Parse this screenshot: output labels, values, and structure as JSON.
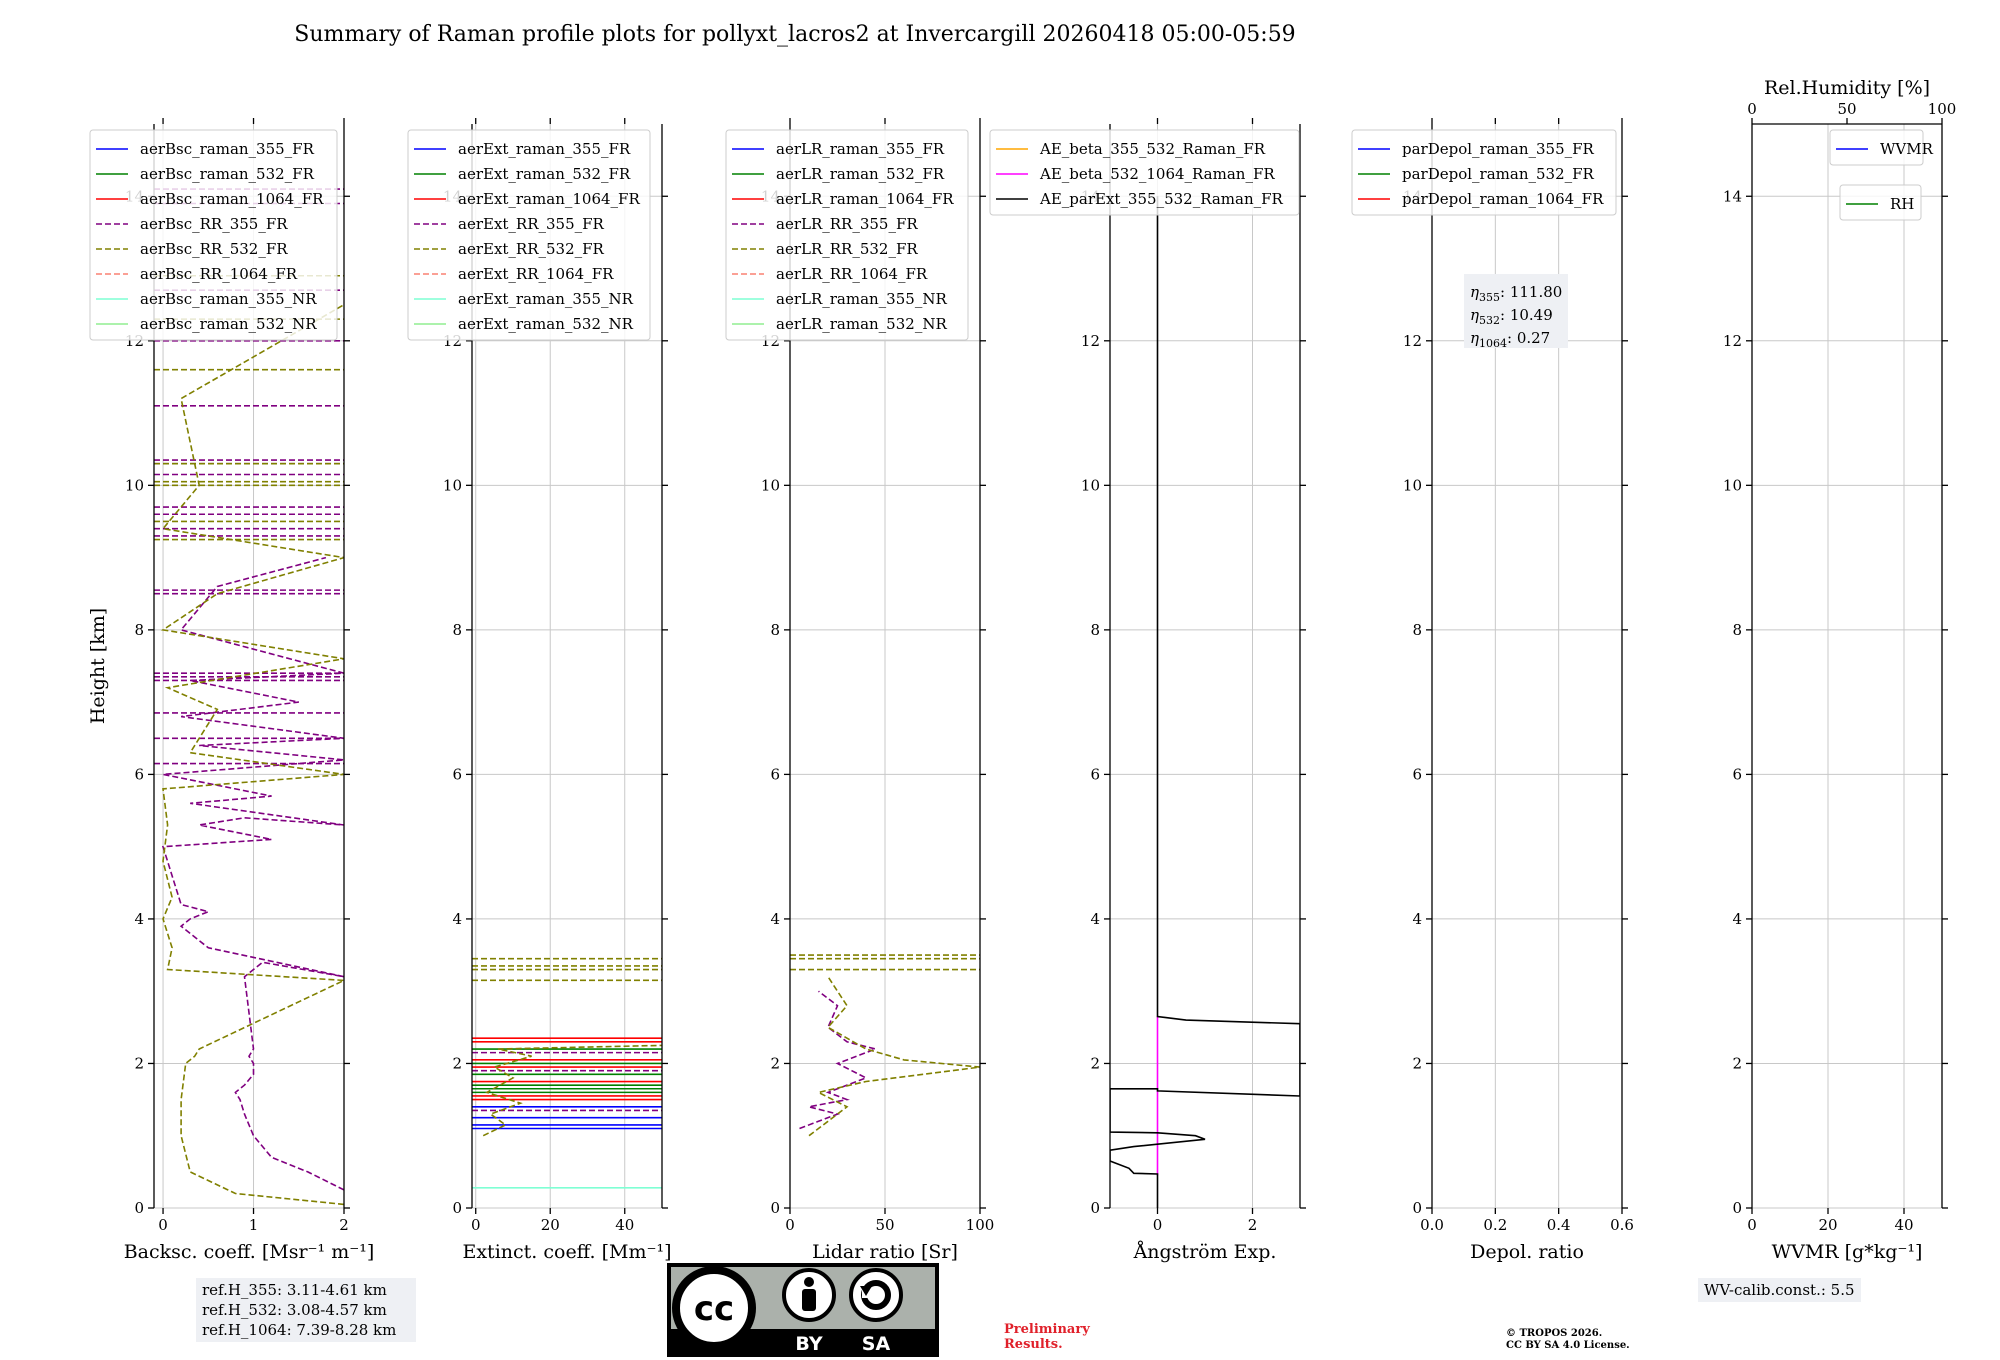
{
  "title": "Summary of Raman profile plots for pollyxt_lacros2 at Invercargill 20260418 05:00-05:59",
  "ylabel": "Height [km]",
  "ref_heights": [
    "ref.H_355: 3.11-4.61 km",
    "ref.H_532: 3.08-4.57 km",
    "ref.H_1064: 7.39-8.28 km"
  ],
  "wv_calib": "WV-calib.const.: 5.5",
  "cc_badge": {
    "by": "BY",
    "sa": "SA"
  },
  "preliminary": [
    "Preliminary",
    "Results."
  ],
  "copyright": [
    "© TROPOS 2026.",
    "CC BY SA 4.0 License."
  ],
  "colors": {
    "blue": "#0000ff",
    "green": "#008000",
    "red": "#ff0000",
    "purple": "#800080",
    "olive": "#808000",
    "salmon": "#fa8072",
    "cyan": "#7fffd4",
    "lightgreen": "#90ee90",
    "orange": "#ffa500",
    "magenta": "#ff00ff",
    "black": "#000000",
    "grid": "#c8c8c8"
  },
  "chart_data": [
    {
      "type": "line",
      "xlabel": "Backsc. coeff. [Msr⁻¹ m⁻¹]",
      "xlim": [
        -0.1,
        2
      ],
      "ylim": [
        0,
        15
      ],
      "xticks": [
        "0",
        "1",
        "2"
      ],
      "xtick_values": [
        0,
        1,
        2
      ],
      "yticks": [
        "0",
        "2",
        "4",
        "6",
        "8",
        "10",
        "12",
        "14"
      ],
      "legend": [
        {
          "label": "aerBsc_raman_355_FR",
          "color": "blue",
          "dash": false
        },
        {
          "label": "aerBsc_raman_532_FR",
          "color": "green",
          "dash": false
        },
        {
          "label": "aerBsc_raman_1064_FR",
          "color": "red",
          "dash": false
        },
        {
          "label": "aerBsc_RR_355_FR",
          "color": "purple",
          "dash": true
        },
        {
          "label": "aerBsc_RR_532_FR",
          "color": "olive",
          "dash": true
        },
        {
          "label": "aerBsc_RR_1064_FR",
          "color": "salmon",
          "dash": true
        },
        {
          "label": "aerBsc_raman_355_NR",
          "color": "cyan",
          "dash": false
        },
        {
          "label": "aerBsc_raman_532_NR",
          "color": "lightgreen",
          "dash": false
        }
      ],
      "series": [
        {
          "name": "aerBsc_RR_355_FR",
          "color": "purple",
          "dash": true,
          "x": [
            2.0,
            1.6,
            1.2,
            1.0,
            0.9,
            0.85,
            0.8,
            0.9,
            1.0,
            1.0,
            0.95,
            1.0,
            0.9,
            1.1,
            2.0,
            0.5,
            0.2,
            0.3,
            0.5,
            0.2,
            0.0,
            1.2,
            0.4,
            0.9,
            2.0,
            0.3,
            1.2,
            0.0,
            2.0,
            0.4,
            2.0,
            0.2,
            1.5,
            0.3,
            2.0,
            0.2,
            0.6,
            1.8
          ],
          "y": [
            0.25,
            0.5,
            0.7,
            1.0,
            1.3,
            1.5,
            1.6,
            1.7,
            1.85,
            2.0,
            2.1,
            2.2,
            3.2,
            3.4,
            3.2,
            3.6,
            3.9,
            4.0,
            4.1,
            4.2,
            5.0,
            5.1,
            5.3,
            5.4,
            5.3,
            5.6,
            5.7,
            6.0,
            6.2,
            6.4,
            6.5,
            6.8,
            7.0,
            7.3,
            7.4,
            8.0,
            8.6,
            9.0
          ]
        },
        {
          "name": "aerBsc_RR_532_FR",
          "color": "olive",
          "dash": true,
          "x": [
            2.0,
            0.8,
            0.3,
            0.2,
            0.2,
            0.25,
            0.35,
            0.4,
            2.0,
            0.05,
            0.1,
            0.0,
            0.1,
            0.0,
            0.05,
            0.0,
            2.0,
            0.3,
            0.6,
            0.05,
            2.0,
            0.0,
            0.6,
            2.0,
            0.0,
            0.4,
            0.2,
            2.0
          ],
          "y": [
            0.05,
            0.2,
            0.5,
            1.0,
            1.5,
            2.0,
            2.1,
            2.2,
            3.15,
            3.3,
            3.6,
            4.0,
            4.3,
            4.8,
            5.3,
            5.8,
            6.0,
            6.3,
            6.9,
            7.2,
            7.6,
            8.0,
            8.5,
            9.0,
            9.4,
            10.0,
            11.2,
            12.5
          ]
        }
      ],
      "hlines": [
        {
          "color": "purple",
          "y": [
            6.15,
            6.5,
            6.85,
            7.3,
            7.35,
            7.4,
            8.5,
            8.55,
            9.3,
            9.4,
            9.6,
            9.7,
            10.15,
            10.3,
            10.35,
            11.1,
            12.0,
            12.7,
            13.9,
            14.1
          ]
        },
        {
          "color": "olive",
          "y": [
            9.25,
            9.5,
            10.0,
            10.05,
            10.3,
            11.6,
            12.3,
            12.9
          ]
        }
      ]
    },
    {
      "type": "line",
      "xlabel": "Extinct. coeff. [Mm⁻¹]",
      "xlim": [
        -1,
        50
      ],
      "ylim": [
        0,
        15
      ],
      "xticks": [
        "0",
        "20",
        "40"
      ],
      "xtick_values": [
        0,
        20,
        40
      ],
      "yticks": [
        "0",
        "2",
        "4",
        "6",
        "8",
        "10",
        "12",
        "14"
      ],
      "legend": [
        {
          "label": "aerExt_raman_355_FR",
          "color": "blue",
          "dash": false
        },
        {
          "label": "aerExt_raman_532_FR",
          "color": "green",
          "dash": false
        },
        {
          "label": "aerExt_raman_1064_FR",
          "color": "red",
          "dash": false
        },
        {
          "label": "aerExt_RR_355_FR",
          "color": "purple",
          "dash": true
        },
        {
          "label": "aerExt_RR_532_FR",
          "color": "olive",
          "dash": true
        },
        {
          "label": "aerExt_RR_1064_FR",
          "color": "salmon",
          "dash": true
        },
        {
          "label": "aerExt_raman_355_NR",
          "color": "cyan",
          "dash": false
        },
        {
          "label": "aerExt_raman_532_NR",
          "color": "lightgreen",
          "dash": false
        }
      ],
      "series": [
        {
          "name": "aerExt_RR_532_FR",
          "color": "olive",
          "dash": true,
          "x": [
            2,
            8,
            4,
            12,
            3,
            10,
            5,
            15,
            6,
            50
          ],
          "y": [
            1.0,
            1.15,
            1.3,
            1.45,
            1.6,
            1.8,
            1.95,
            2.1,
            2.2,
            2.25
          ]
        }
      ],
      "hlines": [
        {
          "color": "cyan",
          "y": [
            0.28
          ]
        },
        {
          "color": "blue",
          "y": [
            1.1,
            1.15,
            1.25,
            1.4
          ]
        },
        {
          "color": "green",
          "y": [
            1.6,
            1.65,
            1.7,
            1.85,
            2.0,
            2.2
          ]
        },
        {
          "color": "red",
          "y": [
            1.5,
            1.55,
            1.75,
            1.95,
            2.05,
            2.3,
            2.35
          ]
        },
        {
          "color": "purple",
          "y": [
            1.35,
            1.9,
            2.15
          ]
        },
        {
          "color": "olive",
          "y": [
            3.15,
            3.3,
            3.35,
            3.45
          ]
        }
      ]
    },
    {
      "type": "line",
      "xlabel": "Lidar ratio [Sr]",
      "xlim": [
        0,
        100
      ],
      "ylim": [
        0,
        15
      ],
      "xticks": [
        "0",
        "50",
        "100"
      ],
      "xtick_values": [
        0,
        50,
        100
      ],
      "yticks": [
        "0",
        "2",
        "4",
        "6",
        "8",
        "10",
        "12",
        "14"
      ],
      "legend": [
        {
          "label": "aerLR_raman_355_FR",
          "color": "blue",
          "dash": false
        },
        {
          "label": "aerLR_raman_532_FR",
          "color": "green",
          "dash": false
        },
        {
          "label": "aerLR_raman_1064_FR",
          "color": "red",
          "dash": false
        },
        {
          "label": "aerLR_RR_355_FR",
          "color": "purple",
          "dash": true
        },
        {
          "label": "aerLR_RR_532_FR",
          "color": "olive",
          "dash": true
        },
        {
          "label": "aerLR_RR_1064_FR",
          "color": "salmon",
          "dash": true
        },
        {
          "label": "aerLR_raman_355_NR",
          "color": "cyan",
          "dash": false
        },
        {
          "label": "aerLR_raman_532_NR",
          "color": "lightgreen",
          "dash": false
        }
      ],
      "series": [
        {
          "name": "aerLR_RR_355_FR",
          "color": "purple",
          "dash": true,
          "x": [
            5,
            15,
            25,
            10,
            30,
            20,
            40,
            25,
            45,
            30,
            20,
            25,
            15
          ],
          "y": [
            1.1,
            1.2,
            1.3,
            1.4,
            1.5,
            1.6,
            1.8,
            2.0,
            2.2,
            2.3,
            2.5,
            2.8,
            3.0
          ]
        },
        {
          "name": "aerLR_RR_532_FR",
          "color": "olive",
          "dash": true,
          "x": [
            10,
            20,
            30,
            15,
            40,
            70,
            100,
            60,
            40,
            20,
            30,
            25,
            20
          ],
          "y": [
            1.0,
            1.2,
            1.4,
            1.6,
            1.75,
            1.85,
            1.95,
            2.05,
            2.2,
            2.5,
            2.8,
            3.0,
            3.2
          ]
        }
      ],
      "hlines": [
        {
          "color": "olive",
          "y": [
            3.3,
            3.45,
            3.5
          ]
        }
      ]
    },
    {
      "type": "line",
      "xlabel": "Ångström Exp.",
      "xlim": [
        -1,
        3
      ],
      "ylim": [
        0,
        15
      ],
      "xticks": [
        "0",
        "2"
      ],
      "xtick_values": [
        0,
        2
      ],
      "yticks": [
        "0",
        "2",
        "4",
        "6",
        "8",
        "10",
        "12",
        "14"
      ],
      "legend": [
        {
          "label": "AE_beta_355_532_Raman_FR",
          "color": "orange",
          "dash": false
        },
        {
          "label": "AE_beta_532_1064_Raman_FR",
          "color": "magenta",
          "dash": false
        },
        {
          "label": "AE_parExt_355_532_Raman_FR",
          "color": "black",
          "dash": false
        }
      ],
      "series": [
        {
          "name": "AE_beta_532_1064_Raman_FR",
          "color": "magenta",
          "dash": false,
          "x": [
            0,
            0
          ],
          "y": [
            0.45,
            2.65
          ]
        },
        {
          "name": "AE_parExt_355_532_Raman_FR",
          "color": "black",
          "dash": false,
          "x": [
            0,
            0,
            0.6,
            3.0,
            3.0,
            0.0,
            0.0,
            -1.0,
            -1.0,
            0.0,
            0.8,
            1.0,
            -0.5,
            -1.0,
            -1.0,
            -0.6,
            -0.5,
            0.0,
            0.0
          ],
          "y": [
            14.0,
            2.65,
            2.6,
            2.55,
            1.55,
            1.62,
            1.65,
            1.65,
            1.05,
            1.04,
            1.0,
            0.95,
            0.85,
            0.8,
            0.65,
            0.55,
            0.48,
            0.47,
            0.0
          ]
        }
      ],
      "hlines": []
    },
    {
      "type": "line",
      "xlabel": "Depol. ratio",
      "xlim": [
        0,
        0.6
      ],
      "ylim": [
        0,
        15
      ],
      "xticks": [
        "0.0",
        "0.2",
        "0.4",
        "0.6"
      ],
      "xtick_values": [
        0,
        0.2,
        0.4,
        0.6
      ],
      "yticks": [
        "0",
        "2",
        "4",
        "6",
        "8",
        "10",
        "12",
        "14"
      ],
      "legend": [
        {
          "label": "parDepol_raman_355_FR",
          "color": "blue",
          "dash": false
        },
        {
          "label": "parDepol_raman_532_FR",
          "color": "green",
          "dash": false
        },
        {
          "label": "parDepol_raman_1064_FR",
          "color": "red",
          "dash": false
        }
      ],
      "eta": [
        {
          "sub": "355",
          "value": ": 111.80"
        },
        {
          "sub": "532",
          "value": ": 10.49"
        },
        {
          "sub": "1064",
          "value": ": 0.27"
        }
      ],
      "series": [],
      "hlines": []
    },
    {
      "type": "line",
      "xlabel": "WVMR [g*kg⁻¹]",
      "xlim": [
        0,
        50
      ],
      "ylim": [
        0,
        15
      ],
      "xticks": [
        "0",
        "20",
        "40"
      ],
      "xtick_values": [
        0,
        20,
        40
      ],
      "yticks": [
        "0",
        "2",
        "4",
        "6",
        "8",
        "10",
        "12",
        "14"
      ],
      "top_axis": {
        "label": "Rel.Humidity [%]",
        "xlim": [
          0,
          100
        ],
        "ticks": [
          "0",
          "50",
          "100"
        ],
        "tick_values": [
          0,
          50,
          100
        ]
      },
      "legend": [
        {
          "label": "WVMR",
          "color": "blue",
          "dash": false
        }
      ],
      "legend2": [
        {
          "label": "RH",
          "color": "green",
          "dash": false
        }
      ],
      "series": [],
      "hlines": []
    }
  ]
}
